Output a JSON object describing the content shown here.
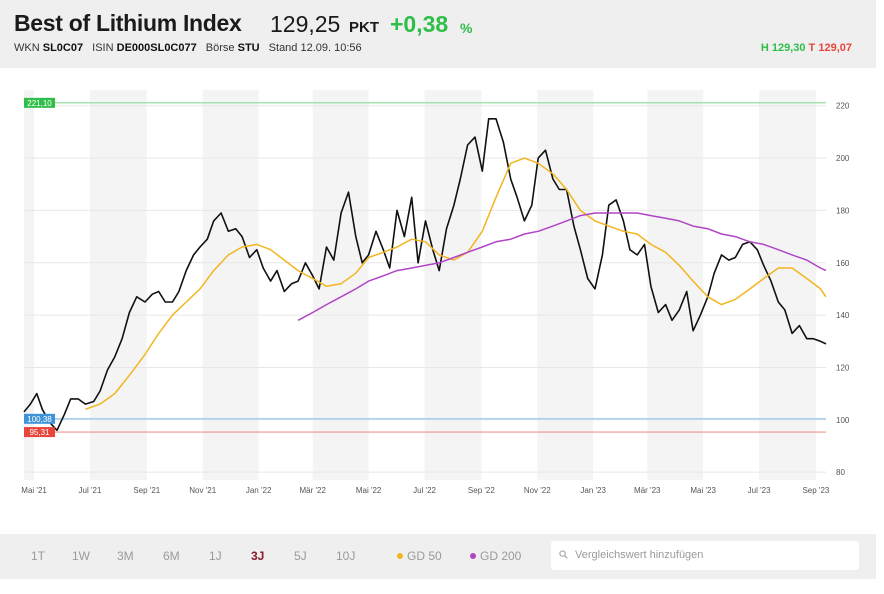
{
  "header": {
    "title": "Best of Lithium Index",
    "price": "129,25",
    "price_unit": "PKT",
    "change": "+0,38",
    "change_unit": "%",
    "wkn_label": "WKN",
    "wkn": "SL0C07",
    "isin_label": "ISIN",
    "isin": "DE000SL0C077",
    "exchange_label": "Börse",
    "exchange": "STU",
    "stand": "Stand 12.09. 10:56",
    "high_label": "H",
    "high": "129,30",
    "low_label": "T",
    "low": "129,07",
    "colors": {
      "positive": "#2fbe4a",
      "negative": "#e8463c"
    }
  },
  "chart_data": {
    "type": "line",
    "x_ticks": [
      "Mai '21",
      "Jul '21",
      "Sep '21",
      "Nov '21",
      "Jan '22",
      "Mär '22",
      "Mai '22",
      "Jul '22",
      "Sep '22",
      "Nov '22",
      "Jan '23",
      "Mär '23",
      "Mai '23",
      "Jul '23",
      "Sep '23"
    ],
    "y_ticks": [
      80,
      100,
      120,
      140,
      160,
      180,
      200,
      220
    ],
    "ylim": [
      77,
      226
    ],
    "grid": true,
    "x_range": [
      "2021-04-20",
      "2023-09-12"
    ],
    "series": [
      {
        "name": "",
        "role": "price",
        "color": "#111111",
        "x": [
          "2021-04-20",
          "2021-04-27",
          "2021-05-04",
          "2021-05-10",
          "2021-05-18",
          "2021-05-26",
          "2021-06-03",
          "2021-06-10",
          "2021-06-18",
          "2021-06-26",
          "2021-07-05",
          "2021-07-12",
          "2021-07-20",
          "2021-07-28",
          "2021-08-05",
          "2021-08-13",
          "2021-08-21",
          "2021-08-30",
          "2021-09-07",
          "2021-09-14",
          "2021-09-21",
          "2021-09-29",
          "2021-10-06",
          "2021-10-14",
          "2021-10-22",
          "2021-10-29",
          "2021-11-06",
          "2021-11-13",
          "2021-11-21",
          "2021-11-29",
          "2021-12-07",
          "2021-12-14",
          "2021-12-22",
          "2021-12-30",
          "2022-01-06",
          "2022-01-14",
          "2022-01-21",
          "2022-01-29",
          "2022-02-06",
          "2022-02-13",
          "2022-02-21",
          "2022-03-01",
          "2022-03-08",
          "2022-03-16",
          "2022-03-24",
          "2022-04-01",
          "2022-04-09",
          "2022-04-17",
          "2022-04-24",
          "2022-05-01",
          "2022-05-09",
          "2022-05-17",
          "2022-05-24",
          "2022-06-01",
          "2022-06-09",
          "2022-06-17",
          "2022-06-24",
          "2022-07-02",
          "2022-07-10",
          "2022-07-17",
          "2022-07-25",
          "2022-08-02",
          "2022-08-09",
          "2022-08-17",
          "2022-08-25",
          "2022-09-02",
          "2022-09-09",
          "2022-09-17",
          "2022-09-25",
          "2022-10-03",
          "2022-10-10",
          "2022-10-18",
          "2022-10-26",
          "2022-11-02",
          "2022-11-10",
          "2022-11-18",
          "2022-11-25",
          "2022-12-03",
          "2022-12-11",
          "2022-12-18",
          "2022-12-26",
          "2023-01-03",
          "2023-01-11",
          "2023-01-18",
          "2023-01-26",
          "2023-02-03",
          "2023-02-10",
          "2023-02-18",
          "2023-02-26",
          "2023-03-05",
          "2023-03-13",
          "2023-03-21",
          "2023-03-28",
          "2023-04-05",
          "2023-04-13",
          "2023-04-20",
          "2023-04-28",
          "2023-05-06",
          "2023-05-13",
          "2023-05-21",
          "2023-05-29",
          "2023-06-05",
          "2023-06-13",
          "2023-06-21",
          "2023-06-29",
          "2023-07-06",
          "2023-07-14",
          "2023-07-22",
          "2023-07-29",
          "2023-08-06",
          "2023-08-14",
          "2023-08-22",
          "2023-08-29",
          "2023-09-06",
          "2023-09-12"
        ],
        "values": [
          103,
          106,
          110,
          104,
          99,
          96,
          102,
          108,
          108,
          106,
          107,
          111,
          119,
          124,
          131,
          141,
          147,
          145,
          148,
          149,
          145,
          145,
          149,
          157,
          163,
          166,
          169,
          176,
          179,
          172,
          173,
          170,
          162,
          165,
          158,
          153,
          157,
          149,
          152,
          153,
          160,
          155,
          150,
          166,
          161,
          179,
          187,
          170,
          160,
          163,
          172,
          165,
          158,
          180,
          170,
          185,
          160,
          176,
          165,
          157,
          173,
          182,
          192,
          205,
          208,
          195,
          215,
          215,
          206,
          192,
          185,
          176,
          182,
          200,
          203,
          192,
          188,
          188,
          174,
          165,
          154,
          150,
          163,
          182,
          184,
          176,
          165,
          163,
          167,
          151,
          141,
          144,
          138,
          142,
          149,
          134,
          140,
          147,
          156,
          163,
          161,
          162,
          167,
          168,
          165,
          159,
          153,
          145,
          142,
          133,
          136,
          131,
          131,
          130,
          129
        ]
      },
      {
        "name": "GD 50",
        "role": "sma50",
        "color": "#f3b51e",
        "x": [
          "2021-06-26",
          "2021-07-12",
          "2021-07-28",
          "2021-08-13",
          "2021-08-30",
          "2021-09-14",
          "2021-09-29",
          "2021-10-14",
          "2021-10-29",
          "2021-11-13",
          "2021-11-29",
          "2021-12-14",
          "2021-12-30",
          "2022-01-14",
          "2022-01-29",
          "2022-02-13",
          "2022-03-01",
          "2022-03-16",
          "2022-04-01",
          "2022-04-17",
          "2022-05-01",
          "2022-05-17",
          "2022-06-01",
          "2022-06-17",
          "2022-07-02",
          "2022-07-17",
          "2022-08-02",
          "2022-08-17",
          "2022-09-02",
          "2022-09-17",
          "2022-10-03",
          "2022-10-18",
          "2022-11-02",
          "2022-11-18",
          "2022-12-03",
          "2022-12-18",
          "2023-01-03",
          "2023-01-18",
          "2023-02-03",
          "2023-02-18",
          "2023-03-05",
          "2023-03-21",
          "2023-04-05",
          "2023-04-20",
          "2023-05-06",
          "2023-05-21",
          "2023-06-05",
          "2023-06-21",
          "2023-07-06",
          "2023-07-22",
          "2023-08-06",
          "2023-08-22",
          "2023-09-06",
          "2023-09-12"
        ],
        "values": [
          104,
          106,
          110,
          117,
          125,
          133,
          140,
          145,
          150,
          157,
          163,
          166,
          167,
          165,
          161,
          157,
          154,
          151,
          152,
          156,
          162,
          164,
          166,
          169,
          168,
          163,
          161,
          164,
          172,
          185,
          198,
          200,
          198,
          194,
          188,
          180,
          176,
          174,
          172,
          171,
          167,
          164,
          159,
          153,
          147,
          144,
          146,
          150,
          154,
          158,
          158,
          154,
          150,
          147
        ]
      },
      {
        "name": "GD 200",
        "role": "sma200",
        "color": "#b144c6",
        "x": [
          "2022-02-13",
          "2022-03-01",
          "2022-03-16",
          "2022-04-01",
          "2022-04-17",
          "2022-05-01",
          "2022-05-17",
          "2022-06-01",
          "2022-06-17",
          "2022-07-02",
          "2022-07-17",
          "2022-08-02",
          "2022-08-17",
          "2022-09-02",
          "2022-09-17",
          "2022-10-03",
          "2022-10-18",
          "2022-11-02",
          "2022-11-18",
          "2022-12-03",
          "2022-12-18",
          "2023-01-03",
          "2023-01-18",
          "2023-02-03",
          "2023-02-18",
          "2023-03-05",
          "2023-03-21",
          "2023-04-05",
          "2023-04-20",
          "2023-05-06",
          "2023-05-21",
          "2023-06-05",
          "2023-06-21",
          "2023-07-06",
          "2023-07-22",
          "2023-08-06",
          "2023-08-22",
          "2023-09-06",
          "2023-09-12"
        ],
        "values": [
          138,
          141,
          144,
          147,
          150,
          153,
          155,
          157,
          158,
          159,
          160,
          162,
          164,
          166,
          168,
          169,
          171,
          172,
          174,
          176,
          178,
          179,
          179,
          179,
          179,
          178,
          177,
          176,
          174,
          173,
          171,
          170,
          168,
          167,
          165,
          163,
          161,
          158,
          157
        ]
      }
    ],
    "reference_lines": [
      {
        "label": "221,10",
        "value": 221.1,
        "color": "#2fbe4a",
        "line_color": "#8bdc95"
      },
      {
        "label": "100,38",
        "value": 100.38,
        "color": "#3f93d9",
        "line_color": "#8cc2ee"
      },
      {
        "label": "95,31",
        "value": 95.31,
        "color": "#e8463c",
        "line_color": "#f0958e"
      }
    ]
  },
  "footer": {
    "ranges": [
      "1T",
      "1W",
      "3M",
      "6M",
      "1J",
      "3J",
      "5J",
      "10J"
    ],
    "active_range": "3J",
    "legend": [
      {
        "label": "GD 50",
        "color": "#f3b51e"
      },
      {
        "label": "GD 200",
        "color": "#b144c6"
      }
    ],
    "search": {
      "placeholder": "Vergleichswert hinzufügen",
      "value": ""
    }
  }
}
